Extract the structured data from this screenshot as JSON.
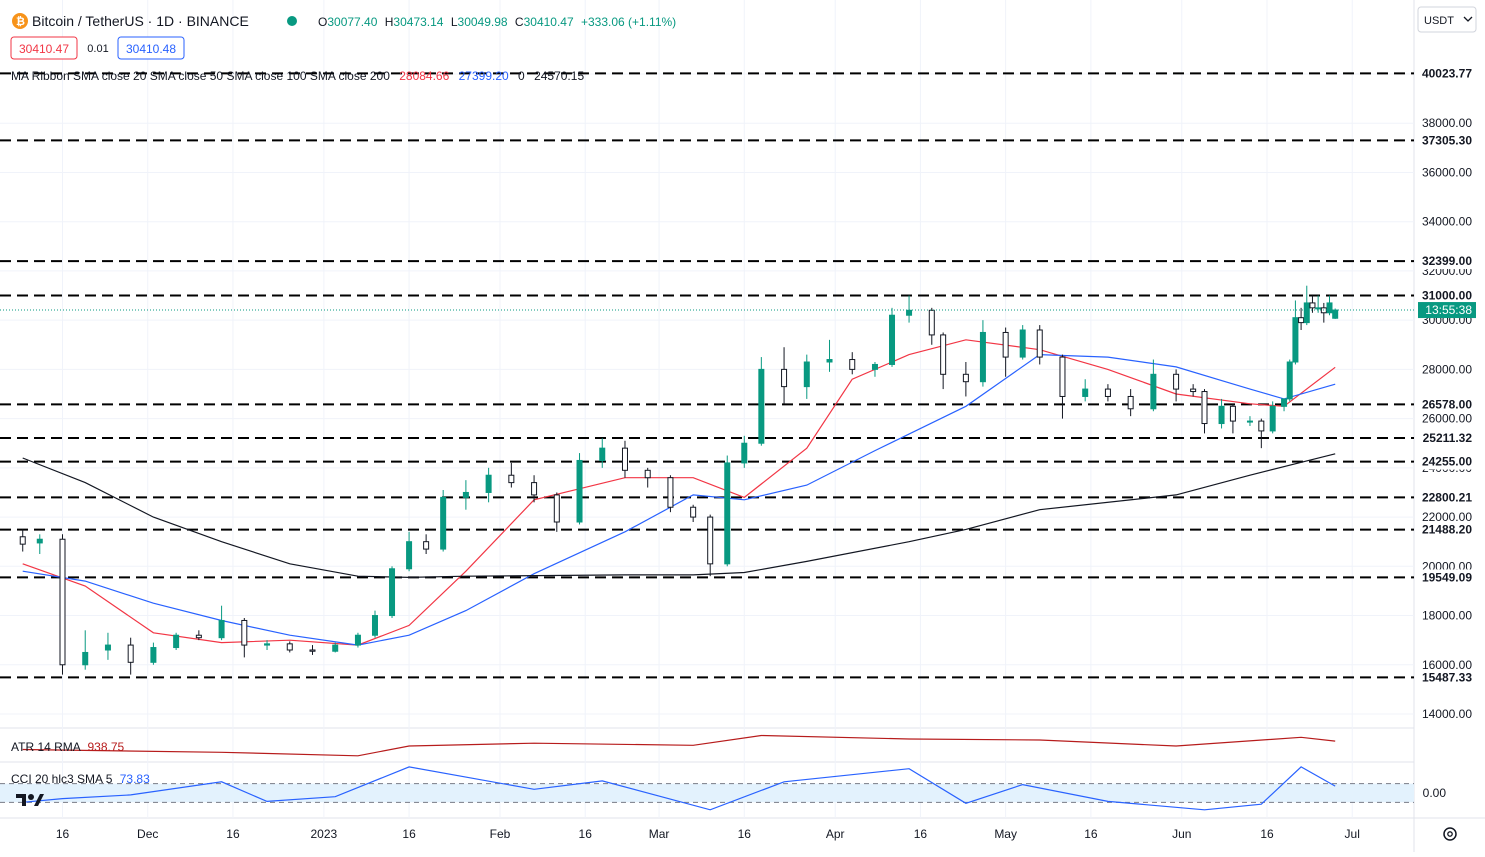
{
  "header": {
    "symbol": "Bitcoin / TetherUS · 1D · BINANCE",
    "ohlc": {
      "O": "30077.40",
      "H": "30473.14",
      "L": "30049.98",
      "C": "30410.47",
      "change": "+333.06 (+1.11%)"
    },
    "sell_price": "30410.47",
    "spread": "0.01",
    "buy_price": "30410.48",
    "ma_ribbon": {
      "label": "MA Ribbon SMA close 20 SMA close 50 SMA close 100 SMA close 200",
      "v1": "28084.66",
      "v2": "27399.20",
      "v3": "0",
      "v4": "24570.15"
    }
  },
  "currency": "USDT",
  "countdown": "13:55:38",
  "colors": {
    "up": "#089981",
    "down": "#f23645",
    "sma20": "#f23645",
    "sma50": "#2962ff",
    "sma200": "#131722",
    "atr": "#b71c1c",
    "cci": "#2962ff",
    "cci_band": "#e3f2fd"
  },
  "indicators": {
    "atr": {
      "label": "ATR 14 RMA",
      "value": "938.75"
    },
    "cci": {
      "label": "CCI 20 hlc3 SMA 5",
      "value": "73.83",
      "axis_label": "0.00"
    }
  },
  "x_axis_labels": [
    "16",
    "Dec",
    "16",
    "2023",
    "16",
    "Feb",
    "16",
    "Mar",
    "16",
    "Apr",
    "16",
    "May",
    "16",
    "Jun",
    "16",
    "Jul"
  ],
  "y_tick_labels": [
    "40000.00",
    "38000.00",
    "36000.00",
    "34000.00",
    "32000.00",
    "30000.00",
    "28000.00",
    "26000.00",
    "24000.00",
    "22000.00",
    "20000.00",
    "18000.00",
    "16000.00",
    "14000.00"
  ],
  "level_labels": [
    "40023.77",
    "37305.30",
    "32399.00",
    "31000.00",
    "26578.00",
    "25211.32",
    "24255.00",
    "22800.21",
    "21488.20",
    "19549.09",
    "15487.33"
  ],
  "chart_data": {
    "type": "candlestick",
    "title": "Bitcoin / TetherUS · 1D · BINANCE",
    "x_range": [
      "2022-11-09",
      "2023-06-28"
    ],
    "y_range": [
      13000,
      41000
    ],
    "y_ticks": [
      40000,
      38000,
      36000,
      34000,
      32000,
      30000,
      28000,
      26000,
      24000,
      22000,
      20000,
      18000,
      16000,
      14000
    ],
    "horizontal_levels": [
      40023.77,
      37305.3,
      32399.0,
      31000.0,
      26578.0,
      25211.32,
      24255.0,
      22800.21,
      21488.2,
      19549.09,
      15487.33
    ],
    "last_close": 30410.47,
    "candles": [
      {
        "date": "2022-11-09",
        "o": 21200,
        "h": 21500,
        "l": 20600,
        "c": 20900
      },
      {
        "date": "2022-11-12",
        "o": 20950,
        "h": 21300,
        "l": 20500,
        "c": 21100
      },
      {
        "date": "2022-11-16",
        "o": 21100,
        "h": 21300,
        "l": 15600,
        "c": 16000
      },
      {
        "date": "2022-11-20",
        "o": 16000,
        "h": 17400,
        "l": 15800,
        "c": 16500
      },
      {
        "date": "2022-11-24",
        "o": 16600,
        "h": 17300,
        "l": 16200,
        "c": 16800
      },
      {
        "date": "2022-11-28",
        "o": 16800,
        "h": 17100,
        "l": 15600,
        "c": 16100
      },
      {
        "date": "2022-12-02",
        "o": 16100,
        "h": 16900,
        "l": 16000,
        "c": 16700
      },
      {
        "date": "2022-12-06",
        "o": 16700,
        "h": 17300,
        "l": 16600,
        "c": 17200
      },
      {
        "date": "2022-12-10",
        "o": 17200,
        "h": 17400,
        "l": 17000,
        "c": 17100
      },
      {
        "date": "2022-12-14",
        "o": 17100,
        "h": 18400,
        "l": 17000,
        "c": 17800
      },
      {
        "date": "2022-12-18",
        "o": 17800,
        "h": 17900,
        "l": 16300,
        "c": 16800
      },
      {
        "date": "2022-12-22",
        "o": 16800,
        "h": 17000,
        "l": 16600,
        "c": 16850
      },
      {
        "date": "2022-12-26",
        "o": 16850,
        "h": 16950,
        "l": 16500,
        "c": 16600
      },
      {
        "date": "2022-12-30",
        "o": 16600,
        "h": 16800,
        "l": 16400,
        "c": 16550
      },
      {
        "date": "2023-01-03",
        "o": 16550,
        "h": 16900,
        "l": 16500,
        "c": 16800
      },
      {
        "date": "2023-01-07",
        "o": 16800,
        "h": 17300,
        "l": 16700,
        "c": 17200
      },
      {
        "date": "2023-01-10",
        "o": 17200,
        "h": 18200,
        "l": 17100,
        "c": 18000
      },
      {
        "date": "2023-01-13",
        "o": 18000,
        "h": 20000,
        "l": 17900,
        "c": 19900
      },
      {
        "date": "2023-01-16",
        "o": 19900,
        "h": 21400,
        "l": 19800,
        "c": 21000
      },
      {
        "date": "2023-01-19",
        "o": 21000,
        "h": 21300,
        "l": 20500,
        "c": 20700
      },
      {
        "date": "2023-01-22",
        "o": 20700,
        "h": 23100,
        "l": 20600,
        "c": 22800
      },
      {
        "date": "2023-01-26",
        "o": 22800,
        "h": 23500,
        "l": 22300,
        "c": 23000
      },
      {
        "date": "2023-01-30",
        "o": 23000,
        "h": 24000,
        "l": 22600,
        "c": 23700
      },
      {
        "date": "2023-02-03",
        "o": 23700,
        "h": 24200,
        "l": 23200,
        "c": 23400
      },
      {
        "date": "2023-02-07",
        "o": 23400,
        "h": 23700,
        "l": 22600,
        "c": 22900
      },
      {
        "date": "2023-02-11",
        "o": 22900,
        "h": 23000,
        "l": 21400,
        "c": 21800
      },
      {
        "date": "2023-02-15",
        "o": 21800,
        "h": 24600,
        "l": 21700,
        "c": 24300
      },
      {
        "date": "2023-02-19",
        "o": 24300,
        "h": 25200,
        "l": 24000,
        "c": 24800
      },
      {
        "date": "2023-02-23",
        "o": 24800,
        "h": 25100,
        "l": 23600,
        "c": 23900
      },
      {
        "date": "2023-02-27",
        "o": 23900,
        "h": 24000,
        "l": 23200,
        "c": 23600
      },
      {
        "date": "2023-03-03",
        "o": 23600,
        "h": 23700,
        "l": 22200,
        "c": 22400
      },
      {
        "date": "2023-03-07",
        "o": 22400,
        "h": 22500,
        "l": 21800,
        "c": 22000
      },
      {
        "date": "2023-03-10",
        "o": 22000,
        "h": 22100,
        "l": 19600,
        "c": 20100
      },
      {
        "date": "2023-03-13",
        "o": 20100,
        "h": 24500,
        "l": 20000,
        "c": 24200
      },
      {
        "date": "2023-03-16",
        "o": 24200,
        "h": 25300,
        "l": 24000,
        "c": 25000
      },
      {
        "date": "2023-03-19",
        "o": 25000,
        "h": 28500,
        "l": 24900,
        "c": 28000
      },
      {
        "date": "2023-03-23",
        "o": 28000,
        "h": 28900,
        "l": 26600,
        "c": 27300
      },
      {
        "date": "2023-03-27",
        "o": 27300,
        "h": 28600,
        "l": 26800,
        "c": 28300
      },
      {
        "date": "2023-03-31",
        "o": 28300,
        "h": 29200,
        "l": 27900,
        "c": 28400
      },
      {
        "date": "2023-04-04",
        "o": 28400,
        "h": 28700,
        "l": 27800,
        "c": 28000
      },
      {
        "date": "2023-04-08",
        "o": 28000,
        "h": 28300,
        "l": 27700,
        "c": 28200
      },
      {
        "date": "2023-04-11",
        "o": 28200,
        "h": 30500,
        "l": 28100,
        "c": 30200
      },
      {
        "date": "2023-04-14",
        "o": 30200,
        "h": 31000,
        "l": 29900,
        "c": 30400
      },
      {
        "date": "2023-04-18",
        "o": 30400,
        "h": 30500,
        "l": 29000,
        "c": 29400
      },
      {
        "date": "2023-04-20",
        "o": 29400,
        "h": 29500,
        "l": 27200,
        "c": 27800
      },
      {
        "date": "2023-04-24",
        "o": 27800,
        "h": 28300,
        "l": 26900,
        "c": 27500
      },
      {
        "date": "2023-04-27",
        "o": 27500,
        "h": 30000,
        "l": 27300,
        "c": 29500
      },
      {
        "date": "2023-05-01",
        "o": 29500,
        "h": 29700,
        "l": 27700,
        "c": 28500
      },
      {
        "date": "2023-05-04",
        "o": 28500,
        "h": 29800,
        "l": 28400,
        "c": 29600
      },
      {
        "date": "2023-05-07",
        "o": 29600,
        "h": 29800,
        "l": 28200,
        "c": 28500
      },
      {
        "date": "2023-05-11",
        "o": 28500,
        "h": 28600,
        "l": 26000,
        "c": 26900
      },
      {
        "date": "2023-05-15",
        "o": 26900,
        "h": 27600,
        "l": 26700,
        "c": 27200
      },
      {
        "date": "2023-05-19",
        "o": 27200,
        "h": 27400,
        "l": 26700,
        "c": 26900
      },
      {
        "date": "2023-05-23",
        "o": 26900,
        "h": 27200,
        "l": 26100,
        "c": 26400
      },
      {
        "date": "2023-05-27",
        "o": 26400,
        "h": 28400,
        "l": 26300,
        "c": 27800
      },
      {
        "date": "2023-05-31",
        "o": 27800,
        "h": 28000,
        "l": 26700,
        "c": 27200
      },
      {
        "date": "2023-06-03",
        "o": 27200,
        "h": 27400,
        "l": 26900,
        "c": 27100
      },
      {
        "date": "2023-06-05",
        "o": 27100,
        "h": 27200,
        "l": 25400,
        "c": 25800
      },
      {
        "date": "2023-06-08",
        "o": 25800,
        "h": 26800,
        "l": 25600,
        "c": 26500
      },
      {
        "date": "2023-06-10",
        "o": 26500,
        "h": 26600,
        "l": 25400,
        "c": 25900
      },
      {
        "date": "2023-06-13",
        "o": 25900,
        "h": 26100,
        "l": 25700,
        "c": 25900
      },
      {
        "date": "2023-06-15",
        "o": 25900,
        "h": 26000,
        "l": 24800,
        "c": 25500
      },
      {
        "date": "2023-06-17",
        "o": 25500,
        "h": 26700,
        "l": 25400,
        "c": 26500
      },
      {
        "date": "2023-06-19",
        "o": 26500,
        "h": 26800,
        "l": 26300,
        "c": 26800
      },
      {
        "date": "2023-06-20",
        "o": 26800,
        "h": 28400,
        "l": 26700,
        "c": 28300
      },
      {
        "date": "2023-06-21",
        "o": 28300,
        "h": 30800,
        "l": 28200,
        "c": 30100
      },
      {
        "date": "2023-06-22",
        "o": 30100,
        "h": 30500,
        "l": 29600,
        "c": 29900
      },
      {
        "date": "2023-06-23",
        "o": 29900,
        "h": 31400,
        "l": 29800,
        "c": 30700
      },
      {
        "date": "2023-06-24",
        "o": 30700,
        "h": 31000,
        "l": 30300,
        "c": 30500
      },
      {
        "date": "2023-06-25",
        "o": 30500,
        "h": 31000,
        "l": 30300,
        "c": 30500
      },
      {
        "date": "2023-06-26",
        "o": 30500,
        "h": 30700,
        "l": 29900,
        "c": 30300
      },
      {
        "date": "2023-06-27",
        "o": 30300,
        "h": 31000,
        "l": 30200,
        "c": 30700
      },
      {
        "date": "2023-06-28",
        "o": 30077.4,
        "h": 30473.14,
        "l": 30049.98,
        "c": 30410.47
      }
    ],
    "series": [
      {
        "name": "SMA close 20",
        "points": [
          [
            "2022-11-09",
            20100
          ],
          [
            "2022-11-20",
            19200
          ],
          [
            "2022-12-02",
            17300
          ],
          [
            "2022-12-14",
            16900
          ],
          [
            "2022-12-26",
            17000
          ],
          [
            "2023-01-07",
            16800
          ],
          [
            "2023-01-16",
            17600
          ],
          [
            "2023-01-26",
            19800
          ],
          [
            "2023-02-07",
            22700
          ],
          [
            "2023-02-23",
            23600
          ],
          [
            "2023-03-07",
            23600
          ],
          [
            "2023-03-16",
            22800
          ],
          [
            "2023-03-27",
            24800
          ],
          [
            "2023-04-04",
            27600
          ],
          [
            "2023-04-14",
            28600
          ],
          [
            "2023-04-24",
            29200
          ],
          [
            "2023-05-07",
            28800
          ],
          [
            "2023-05-19",
            28000
          ],
          [
            "2023-05-31",
            27000
          ],
          [
            "2023-06-13",
            26600
          ],
          [
            "2023-06-19",
            26500
          ],
          [
            "2023-06-28",
            28084.66
          ]
        ]
      },
      {
        "name": "SMA close 50",
        "points": [
          [
            "2022-11-09",
            19800
          ],
          [
            "2022-11-20",
            19400
          ],
          [
            "2022-12-02",
            18500
          ],
          [
            "2022-12-14",
            17800
          ],
          [
            "2022-12-26",
            17200
          ],
          [
            "2023-01-07",
            16800
          ],
          [
            "2023-01-16",
            17200
          ],
          [
            "2023-01-26",
            18200
          ],
          [
            "2023-02-07",
            19700
          ],
          [
            "2023-02-23",
            21400
          ],
          [
            "2023-03-07",
            22900
          ],
          [
            "2023-03-16",
            22700
          ],
          [
            "2023-03-27",
            23300
          ],
          [
            "2023-04-08",
            24700
          ],
          [
            "2023-04-24",
            26500
          ],
          [
            "2023-05-07",
            28600
          ],
          [
            "2023-05-19",
            28500
          ],
          [
            "2023-05-31",
            28100
          ],
          [
            "2023-06-13",
            27200
          ],
          [
            "2023-06-19",
            26800
          ],
          [
            "2023-06-28",
            27399.2
          ]
        ]
      },
      {
        "name": "SMA close 200",
        "points": [
          [
            "2022-11-09",
            24400
          ],
          [
            "2022-11-20",
            23400
          ],
          [
            "2022-12-02",
            22000
          ],
          [
            "2022-12-14",
            21000
          ],
          [
            "2022-12-26",
            20100
          ],
          [
            "2023-01-07",
            19600
          ],
          [
            "2023-01-16",
            19550
          ],
          [
            "2023-01-26",
            19600
          ],
          [
            "2023-02-23",
            19650
          ],
          [
            "2023-03-07",
            19650
          ],
          [
            "2023-03-16",
            19750
          ],
          [
            "2023-03-27",
            20200
          ],
          [
            "2023-04-14",
            21000
          ],
          [
            "2023-04-24",
            21500
          ],
          [
            "2023-05-07",
            22300
          ],
          [
            "2023-05-31",
            22900
          ],
          [
            "2023-06-13",
            23700
          ],
          [
            "2023-06-28",
            24570.15
          ]
        ]
      }
    ],
    "atr": {
      "name": "ATR 14 RMA",
      "last": 938.75,
      "points": [
        [
          "2022-11-09",
          700
        ],
        [
          "2022-12-14",
          620
        ],
        [
          "2023-01-07",
          520
        ],
        [
          "2023-01-16",
          800
        ],
        [
          "2023-02-07",
          880
        ],
        [
          "2023-03-07",
          820
        ],
        [
          "2023-03-19",
          1100
        ],
        [
          "2023-04-14",
          1000
        ],
        [
          "2023-05-07",
          970
        ],
        [
          "2023-05-31",
          800
        ],
        [
          "2023-06-22",
          1050
        ],
        [
          "2023-06-28",
          938.75
        ]
      ]
    },
    "cci": {
      "name": "CCI 20 hlc3 SMA 5",
      "last": 73.83,
      "points": [
        [
          "2022-11-09",
          -100
        ],
        [
          "2022-11-16",
          -60
        ],
        [
          "2022-11-28",
          -20
        ],
        [
          "2022-12-14",
          120
        ],
        [
          "2022-12-22",
          -90
        ],
        [
          "2023-01-03",
          -40
        ],
        [
          "2023-01-16",
          280
        ],
        [
          "2023-02-07",
          40
        ],
        [
          "2023-02-19",
          130
        ],
        [
          "2023-03-10",
          -180
        ],
        [
          "2023-03-23",
          120
        ],
        [
          "2023-04-14",
          260
        ],
        [
          "2023-04-24",
          -110
        ],
        [
          "2023-05-04",
          90
        ],
        [
          "2023-05-19",
          -90
        ],
        [
          "2023-06-05",
          -180
        ],
        [
          "2023-06-15",
          -120
        ],
        [
          "2023-06-22",
          280
        ],
        [
          "2023-06-28",
          73.83
        ]
      ]
    }
  }
}
